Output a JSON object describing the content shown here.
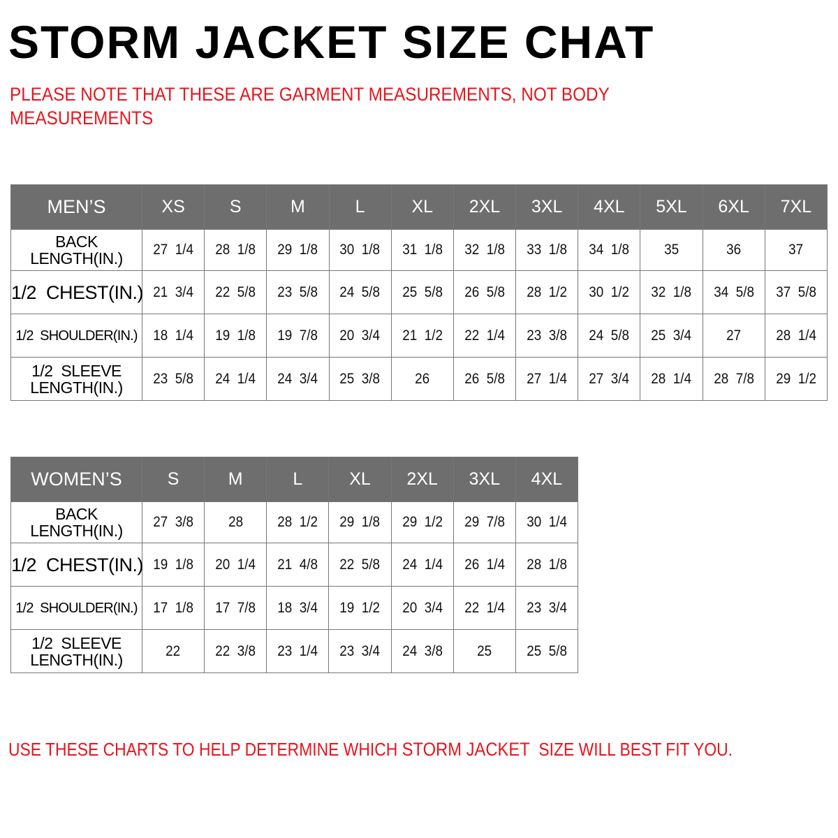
{
  "title": "STORM JACKET SIZE CHAT",
  "note": [
    "PLEASE NOTE THAT THESE ARE GARMENT MEASUREMENTS, NOT BODY",
    "MEASUREMENTS"
  ],
  "colors": {
    "header_bg": "#6e6e6e",
    "note_red": "#e8141c"
  },
  "mens": {
    "header": "MEN’S",
    "sizes": [
      "XS",
      "S",
      "M",
      "L",
      "XL",
      "2XL",
      "3XL",
      "4XL",
      "5XL",
      "6XL",
      "7XL"
    ],
    "rows": [
      {
        "label": [
          "BACK",
          "LENGTH(IN.)"
        ],
        "values": [
          "27  1/4",
          "28  1/8",
          "29  1/8",
          "30  1/8",
          "31  1/8",
          "32  1/8",
          "33  1/8",
          "34  1/8",
          "35",
          "36",
          "37"
        ]
      },
      {
        "label": [
          "1/2  CHEST(IN.)"
        ],
        "values": [
          "21  3/4",
          "22  5/8",
          "23  5/8",
          "24  5/8",
          "25  5/8",
          "26  5/8",
          "28  1/2",
          "30  1/2",
          "32  1/8",
          "34  5/8",
          "37  5/8"
        ]
      },
      {
        "label": [
          "1/2  SHOULDER(IN.)"
        ],
        "values": [
          "18  1/4",
          "19  1/8",
          "19  7/8",
          "20  3/4",
          "21  1/2",
          "22  1/4",
          "23  3/8",
          "24  5/8",
          "25  3/4",
          "27",
          "28  1/4"
        ]
      },
      {
        "label": [
          "1/2  SLEEVE",
          "LENGTH(IN.)"
        ],
        "values": [
          "23  5/8",
          "24  1/4",
          "24  3/4",
          "25  3/8",
          "26",
          "26  5/8",
          "27  1/4",
          "27  3/4",
          "28  1/4",
          "28  7/8",
          "29  1/2"
        ]
      }
    ]
  },
  "womens": {
    "header": "WOMEN’S",
    "sizes": [
      "S",
      "M",
      "L",
      "XL",
      "2XL",
      "3XL",
      "4XL"
    ],
    "rows": [
      {
        "label": [
          "BACK",
          "LENGTH(IN.)"
        ],
        "values": [
          "27  3/8",
          "28",
          "28  1/2",
          "29  1/8",
          "29  1/2",
          "29  7/8",
          "30  1/4"
        ]
      },
      {
        "label": [
          "1/2  CHEST(IN.)"
        ],
        "values": [
          "19  1/8",
          "20  1/4",
          "21  4/8",
          "22  5/8",
          "24  1/4",
          "26  1/4",
          "28  1/8"
        ]
      },
      {
        "label": [
          "1/2  SHOULDER(IN.)"
        ],
        "values": [
          "17  1/8",
          "17  7/8",
          "18  3/4",
          "19  1/2",
          "20  3/4",
          "22  1/4",
          "23  3/4"
        ]
      },
      {
        "label": [
          "1/2  SLEEVE",
          "LENGTH(IN.)"
        ],
        "values": [
          "22",
          "22  3/8",
          "23  1/4",
          "23  3/4",
          "24  3/8",
          "25",
          "25  5/8"
        ]
      }
    ]
  },
  "footer": {
    "before": "USE THESE CHARTS TO HELP DETERMINE WHICH ",
    "highlight": "STORM JACKET",
    "after": "  SIZE WILL BEST FIT YOU."
  }
}
